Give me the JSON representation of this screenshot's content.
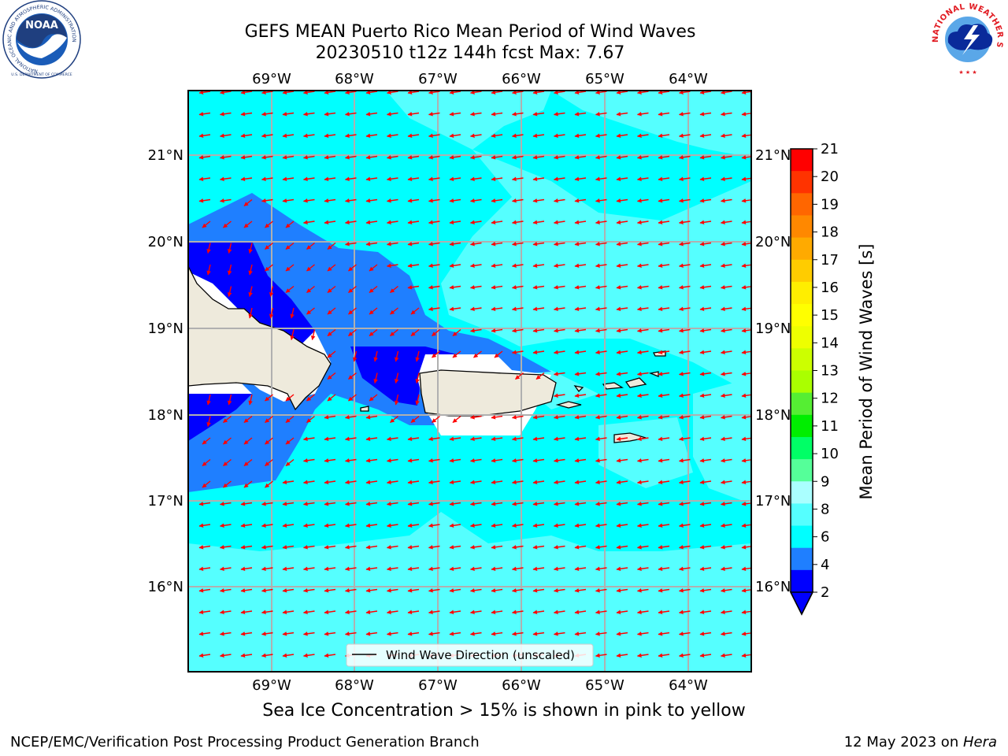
{
  "header": {
    "title_line1": "GEFS MEAN Puerto Rico Mean Period of Wind Waves",
    "title_line2": "20230510 t12z 144h fcst   Max: 7.67"
  },
  "logos": {
    "left": {
      "name": "NOAA",
      "ring_text": "NATIONAL OCEANIC AND ATMOSPHERIC ADMINISTRATION",
      "bottom_text": "U.S. DEPARTMENT OF COMMERCE"
    },
    "right": {
      "ring_text": "NATIONAL WEATHER SERVICE"
    }
  },
  "map": {
    "lon_labels": [
      "69°W",
      "68°W",
      "67°W",
      "66°W",
      "65°W",
      "64°W"
    ],
    "lat_labels": [
      "21°N",
      "20°N",
      "19°N",
      "18°N",
      "17°N",
      "16°N"
    ],
    "legend_text": "Wind Wave Direction (unscaled)",
    "wave_direction": "toward west-southwest",
    "colors": {
      "ocean_low": "#00ffff",
      "ocean_mid": "#55ffff",
      "band_4": "#1f7fff",
      "band_2": "#0000ff",
      "land": "#eeeadc",
      "arrows": "#ff0000",
      "grid": "#b0b0b0"
    }
  },
  "colorbar": {
    "label": "Mean Period of Wind Waves [s]",
    "ticks": [
      "21",
      "20",
      "19",
      "18",
      "17",
      "16",
      "15",
      "14",
      "13",
      "12",
      "11",
      "10",
      "9",
      "8",
      "6",
      "4",
      "2"
    ],
    "colors": [
      "#ff0000",
      "#ff3300",
      "#ff6600",
      "#ff8800",
      "#ffaa00",
      "#ffcc00",
      "#ffee00",
      "#ffff00",
      "#eeff00",
      "#ccff00",
      "#aaff00",
      "#55ee33",
      "#00ee00",
      "#00ff66",
      "#55ff99",
      "#aaffff",
      "#55ffff",
      "#00ffff",
      "#1f7fff",
      "#0000ff"
    ],
    "extend_color": "#0000ff"
  },
  "footer": {
    "note": "Sea Ice Concentration > 15% is shown in pink to yellow",
    "left": "NCEP/EMC/Verification Post Processing Product Generation Branch",
    "right_date": "12 May 2023 on ",
    "right_host": "Hera"
  }
}
